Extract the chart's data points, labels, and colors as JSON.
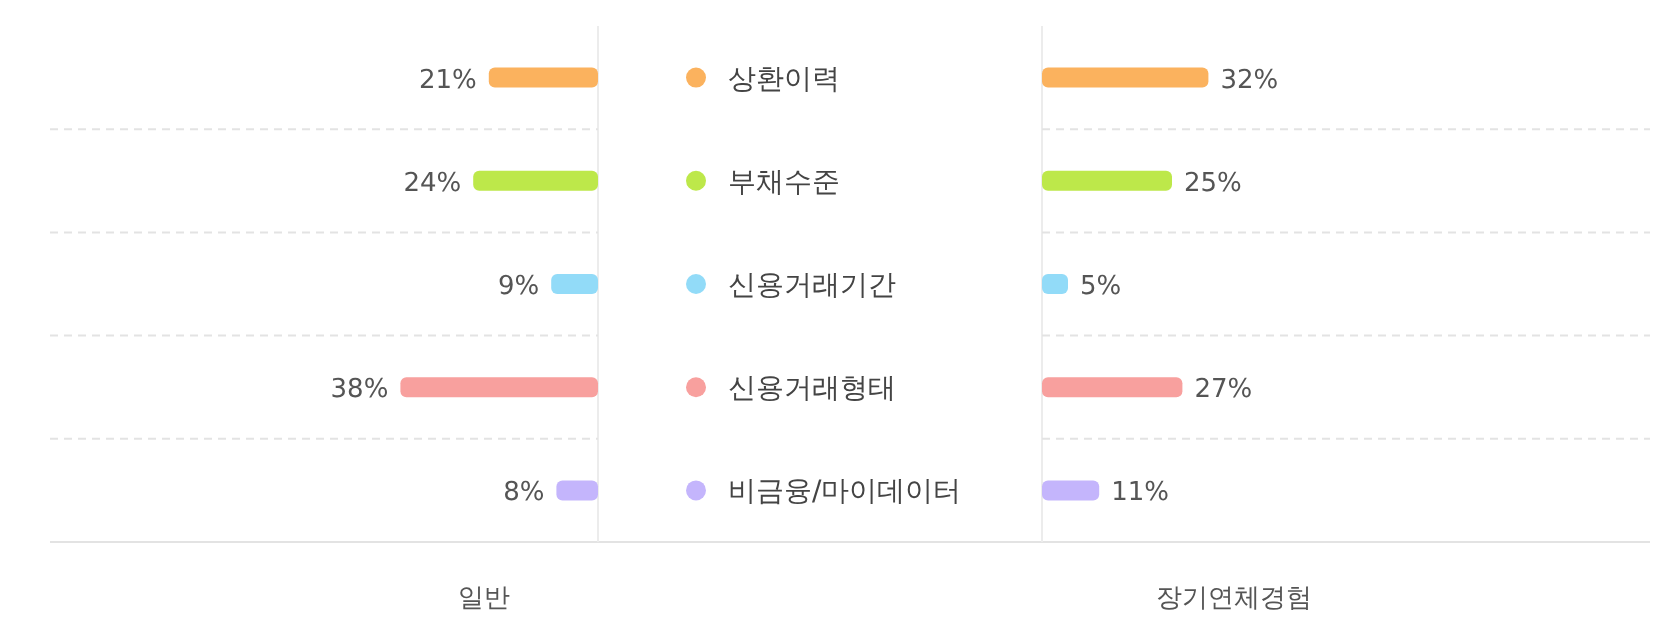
{
  "chart_data": [
    {
      "type": "bar",
      "orientation": "horizontal",
      "xlabel": "일반",
      "categories": [
        "상환이력",
        "부채수준",
        "신용거래기간",
        "신용거래형태",
        "비금융/마이데이터"
      ],
      "colors": [
        "#fbb25e",
        "#bde84a",
        "#92dbf8",
        "#f8a09e",
        "#c4b5fc"
      ],
      "values": [
        21,
        24,
        9,
        38,
        8
      ],
      "value_labels": [
        "21%",
        "24%",
        "9%",
        "38%",
        "8%"
      ],
      "grid": true
    },
    {
      "type": "bar",
      "orientation": "horizontal",
      "xlabel": "장기연체경험",
      "categories": [
        null,
        null,
        null,
        null,
        null
      ],
      "colors": [
        "#fbb25e",
        "#bde84a",
        "#92dbf8",
        "#f8a09e",
        "#c4b5fc"
      ],
      "values": [
        32,
        25,
        5,
        27,
        11
      ],
      "value_labels": [
        "32%",
        "25%",
        "5%",
        "27%",
        "11%"
      ],
      "grid": true
    }
  ]
}
